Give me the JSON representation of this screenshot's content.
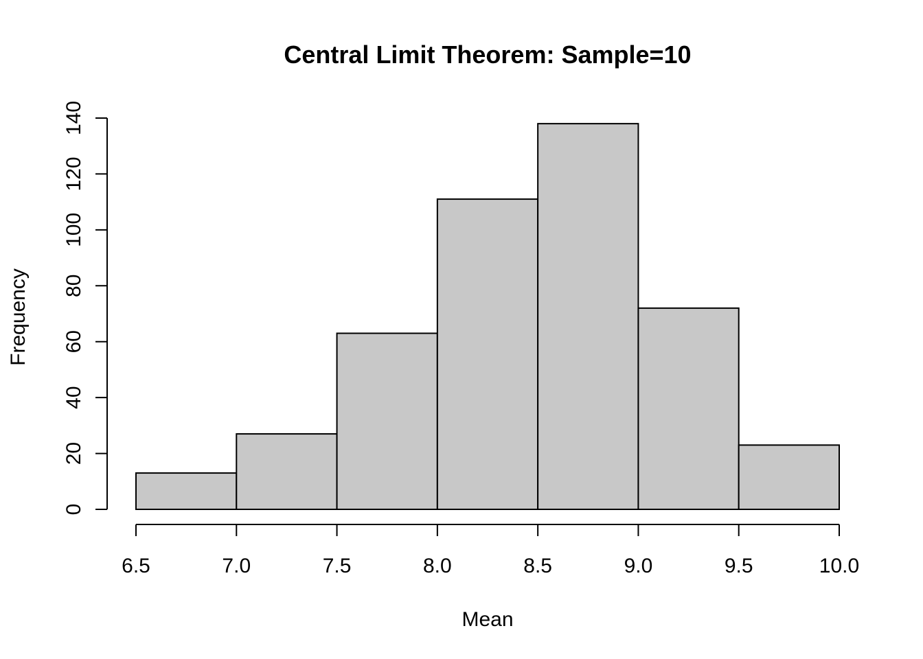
{
  "chart_data": {
    "type": "bar",
    "title": "Central Limit Theorem: Sample=10",
    "xlabel": "Mean",
    "ylabel": "Frequency",
    "bins": [
      {
        "from": 6.5,
        "to": 7.0,
        "count": 13
      },
      {
        "from": 7.0,
        "to": 7.5,
        "count": 27
      },
      {
        "from": 7.5,
        "to": 8.0,
        "count": 63
      },
      {
        "from": 8.0,
        "to": 8.5,
        "count": 111
      },
      {
        "from": 8.5,
        "to": 9.0,
        "count": 138
      },
      {
        "from": 9.0,
        "to": 9.5,
        "count": 72
      },
      {
        "from": 9.5,
        "to": 10.0,
        "count": 23
      }
    ],
    "xlim": [
      6.5,
      10.0
    ],
    "ylim": [
      0,
      140
    ],
    "x_ticks": [
      "6.5",
      "7.0",
      "7.5",
      "8.0",
      "8.5",
      "9.0",
      "9.5",
      "10.0"
    ],
    "y_ticks": [
      "0",
      "20",
      "40",
      "60",
      "80",
      "100",
      "120",
      "140"
    ],
    "bar_color": "#c8c8c8",
    "edge_color": "#000000",
    "grid": false,
    "legend": false
  }
}
